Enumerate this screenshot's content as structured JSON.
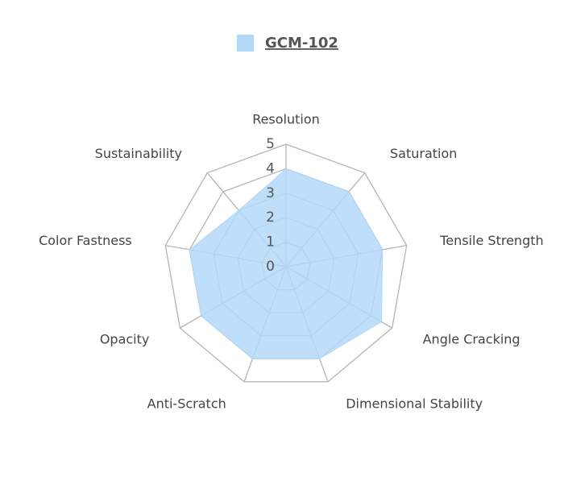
{
  "chart_data": {
    "type": "radar",
    "categories": [
      "Resolution",
      "Saturation",
      "Tensile Strength",
      "Angle Cracking",
      "Dimensional Stability",
      "Anti-Scratch",
      "Opacity",
      "Color Fastness",
      "Sustainability"
    ],
    "series": [
      {
        "name": "GCM-102",
        "color": "#b3d8f8",
        "values": [
          4,
          4,
          4,
          4.5,
          4,
          4,
          4,
          4,
          3
        ]
      }
    ],
    "ylim": [
      0,
      5
    ],
    "yticks": [
      0,
      1,
      2,
      3,
      4,
      5
    ],
    "grid": true,
    "legend": "top"
  }
}
